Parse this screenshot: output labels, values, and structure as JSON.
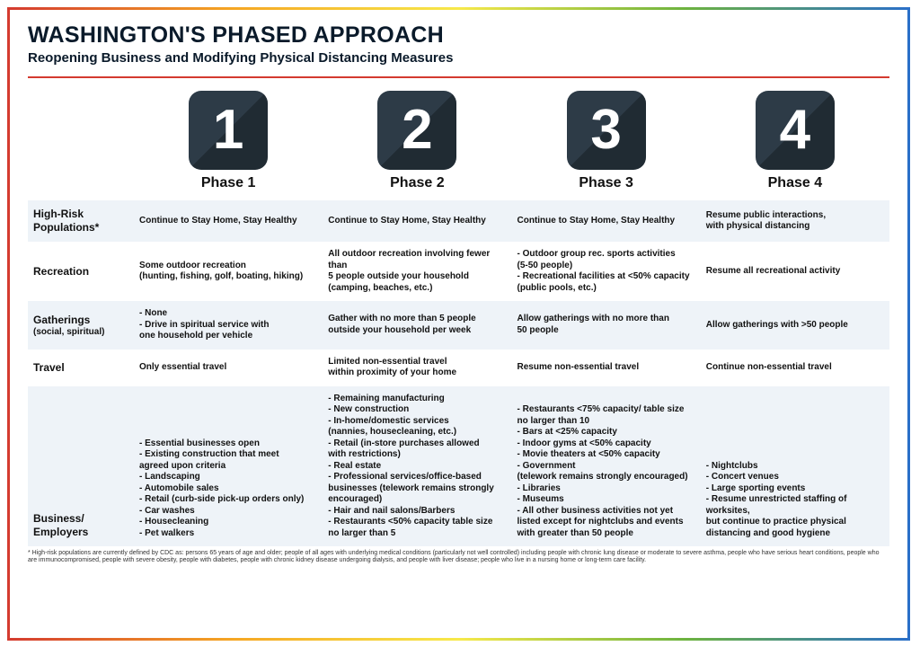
{
  "header": {
    "title": "WASHINGTON'S PHASED APPROACH",
    "subtitle": "Reopening Business and Modifying Physical Distancing Measures"
  },
  "colors": {
    "gradient": [
      "#d43a2f",
      "#f5a623",
      "#f7e94a",
      "#6db33f",
      "#2a6fc9"
    ],
    "icon_bg": "#2d3b47",
    "band_bg": "#eef3f8",
    "rule": "#d43a2f",
    "text": "#111111"
  },
  "phases": [
    {
      "num": "1",
      "label": "Phase 1"
    },
    {
      "num": "2",
      "label": "Phase 2"
    },
    {
      "num": "3",
      "label": "Phase 3"
    },
    {
      "num": "4",
      "label": "Phase 4"
    }
  ],
  "rows": [
    {
      "label": "High-Risk\nPopulations*",
      "sublabel": "",
      "band": true,
      "cells": [
        "Continue  to Stay Home,  Stay Healthy",
        "Continue  to Stay Home,  Stay Healthy",
        "Continue  to Stay Home,  Stay Healthy",
        "Resume public interactions,\nwith physical distancing"
      ]
    },
    {
      "label": "Recreation",
      "sublabel": "",
      "band": false,
      "cells": [
        "Some outdoor recreation\n(hunting, fishing, golf, boating, hiking)",
        "All outdoor recreation involving fewer than\n5 people outside your household\n(camping, beaches, etc.)",
        "- Outdoor group rec. sports activities\n   (5-50 people)\n- Recreational facilities at <50% capacity\n   (public pools, etc.)",
        "Resume all recreational activity"
      ]
    },
    {
      "label": "Gatherings",
      "sublabel": "(social, spiritual)",
      "band": true,
      "cells": [
        "- None\n- Drive in spiritual service with\n   one household per vehicle",
        "Gather with no more than 5 people\noutside your household per week",
        "Allow gatherings with no more than\n50 people",
        "Allow gatherings with >50 people"
      ]
    },
    {
      "label": "Travel",
      "sublabel": "",
      "band": false,
      "cells": [
        "Only essential travel",
        "Limited non-essential travel\nwithin proximity of your home",
        "Resume non-essential travel",
        "Continue non-essential travel"
      ]
    },
    {
      "label": "Business/\nEmployers",
      "sublabel": "",
      "band": true,
      "cells": [
        "- Essential businesses open\n- Existing construction that meet\n   agreed upon criteria\n- Landscaping\n- Automobile sales\n- Retail (curb-side pick-up orders only)\n- Car washes\n- Housecleaning\n- Pet walkers",
        "- Remaining manufacturing\n- New construction\n- In-home/domestic services\n   (nannies, housecleaning, etc.)\n- Retail (in-store purchases allowed\n   with restrictions)\n- Real estate\n- Professional services/office-based\n   businesses  (telework remains  strongly\n   encouraged)\n- Hair and nail salons/Barbers\n- Restaurants <50% capacity table size\n   no larger than 5",
        "- Restaurants <75% capacity/ table size\n   no larger than 10\n- Bars at <25% capacity\n- Indoor gyms at <50% capacity\n- Movie theaters at <50% capacity\n- Government\n   (telework remains strongly encouraged)\n- Libraries\n- Museums\n- All other business activities not yet\n   listed except for nightclubs and events\n   with greater than 50 people",
        "- Nightclubs\n- Concert venues\n- Large sporting events\n- Resume unrestricted staffing of worksites,\n   but continue to practice physical\n   distancing and good hygiene"
      ]
    }
  ],
  "footnote": "* High-risk populations are currently defined by CDC as: persons 65 years of age and older; people of all ages with underlying medical conditions (particularly not well controlled) including people with chronic lung disease or moderate to severe asthma, people who have serious heart conditions, people who are immunocompromised, people with severe obesity, people with diabetes, people with chronic kidney disease undergoing dialysis, and people with liver disease; people who live in a nursing home or long-term care facility."
}
